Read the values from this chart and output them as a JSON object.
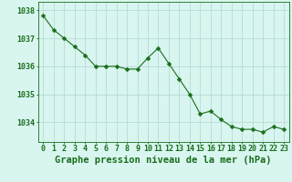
{
  "hours": [
    0,
    1,
    2,
    3,
    4,
    5,
    6,
    7,
    8,
    9,
    10,
    11,
    12,
    13,
    14,
    15,
    16,
    17,
    18,
    19,
    20,
    21,
    22,
    23
  ],
  "pressure": [
    1037.8,
    1037.3,
    1037.0,
    1036.7,
    1036.4,
    1036.0,
    1036.0,
    1036.0,
    1035.9,
    1035.9,
    1036.3,
    1036.65,
    1036.1,
    1035.55,
    1035.0,
    1034.3,
    1034.4,
    1034.1,
    1033.85,
    1033.75,
    1033.75,
    1033.65,
    1033.85,
    1033.75
  ],
  "line_color": "#1a6e1a",
  "marker": "D",
  "marker_size": 2.5,
  "bg_color": "#d8f5f0",
  "grid_color": "#b8dbd5",
  "ylabel_ticks": [
    1034,
    1035,
    1036,
    1037,
    1038
  ],
  "xlabel": "Graphe pression niveau de la mer (hPa)",
  "xlim": [
    -0.5,
    23.5
  ],
  "ylim": [
    1033.3,
    1038.3
  ],
  "tick_color": "#1a6e1a",
  "label_fontsize": 6.0,
  "xlabel_fontsize": 7.5
}
